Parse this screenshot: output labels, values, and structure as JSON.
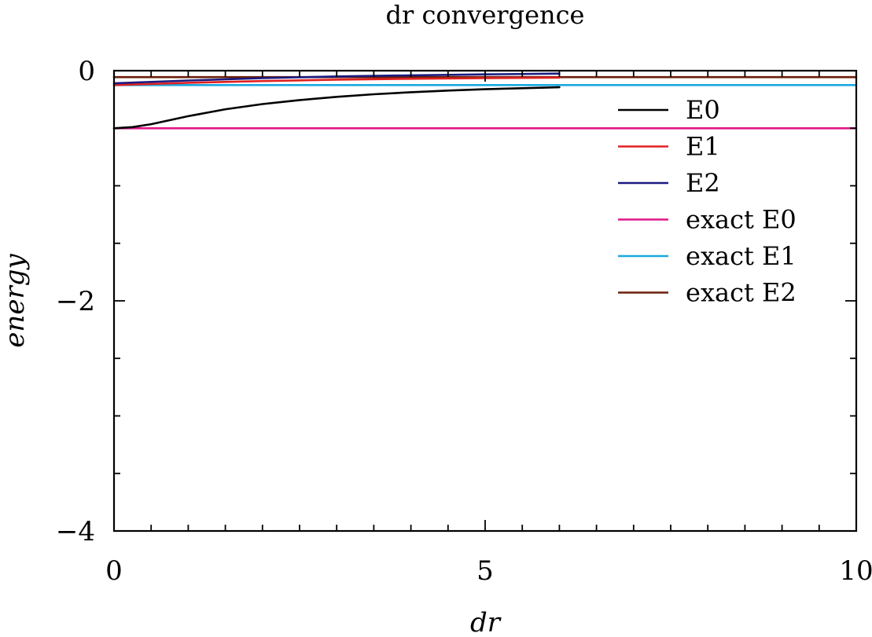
{
  "chart_data": {
    "type": "line",
    "title": "dr convergence",
    "xlabel": "dr",
    "ylabel": "energy",
    "xlim": [
      0,
      10
    ],
    "ylim": [
      -4,
      0
    ],
    "x_ticks": [
      0,
      5,
      10
    ],
    "x_tick_labels": [
      "0",
      "5",
      "10"
    ],
    "y_ticks": [
      0,
      -2,
      -4
    ],
    "y_tick_labels": [
      "0",
      "−2",
      "−4"
    ],
    "x_minor_step": 0.5,
    "y_minor_step": 0.5,
    "grid": false,
    "legend_position": "top-right",
    "series": [
      {
        "name": "E0",
        "color": "#000000",
        "x": [
          0,
          0.25,
          0.5,
          0.75,
          1.0,
          1.5,
          2.0,
          2.5,
          3.0,
          3.5,
          4.0,
          4.5,
          5.0,
          5.5,
          6.0
        ],
        "y": [
          -0.5,
          -0.49,
          -0.465,
          -0.43,
          -0.395,
          -0.335,
          -0.29,
          -0.255,
          -0.227,
          -0.205,
          -0.187,
          -0.173,
          -0.161,
          -0.152,
          -0.144
        ]
      },
      {
        "name": "E1",
        "color": "#e02020",
        "x": [
          0,
          1,
          2,
          3,
          4,
          5,
          6
        ],
        "y": [
          -0.125,
          -0.105,
          -0.09,
          -0.078,
          -0.07,
          -0.064,
          -0.06
        ]
      },
      {
        "name": "E2",
        "color": "#1a1a80",
        "x": [
          0,
          1,
          2,
          3,
          4,
          5,
          6
        ],
        "y": [
          -0.11,
          -0.085,
          -0.065,
          -0.05,
          -0.04,
          -0.032,
          -0.025
        ]
      },
      {
        "name": "exact E0",
        "color": "#e0168a",
        "x": [
          0,
          10
        ],
        "y": [
          -0.5,
          -0.5
        ]
      },
      {
        "name": "exact E1",
        "color": "#19a9e0",
        "x": [
          0,
          10
        ],
        "y": [
          -0.125,
          -0.125
        ]
      },
      {
        "name": "exact E2",
        "color": "#6b1e0a",
        "x": [
          0,
          10
        ],
        "y": [
          -0.056,
          -0.056
        ]
      }
    ]
  }
}
